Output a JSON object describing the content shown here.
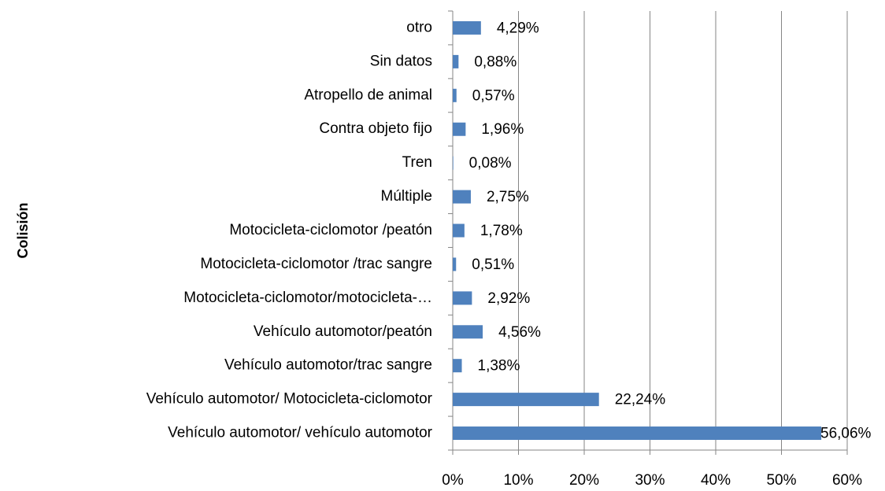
{
  "chart_data": {
    "type": "bar",
    "orientation": "horizontal",
    "y_axis_label": "Colisión",
    "categories": [
      "otro",
      "Sin datos",
      "Atropello de animal",
      "Contra objeto fijo",
      "Tren",
      "Múltiple",
      "Motocicleta-ciclomotor /peatón",
      "Motocicleta-ciclomotor /trac sangre",
      "Motocicleta-ciclomotor/motocicleta-…",
      "Vehículo automotor/peatón",
      "Vehículo automotor/trac sangre",
      "Vehículo automotor/ Motocicleta-ciclomotor",
      "Vehículo automotor/ vehículo automotor"
    ],
    "values": [
      4.29,
      0.88,
      0.57,
      1.96,
      0.08,
      2.75,
      1.78,
      0.51,
      2.92,
      4.56,
      1.38,
      22.24,
      56.06
    ],
    "value_labels": [
      "4,29%",
      "0,88%",
      "0,57%",
      "1,96%",
      "0,08%",
      "2,75%",
      "1,78%",
      "0,51%",
      "2,92%",
      "4,56%",
      "1,38%",
      "22,24%",
      "56,06%"
    ],
    "color": "#4f81bd",
    "xlim": [
      0,
      60
    ],
    "xticks": [
      {
        "value": 0,
        "label": "0%"
      },
      {
        "value": 10,
        "label": "10%"
      },
      {
        "value": 20,
        "label": "20%"
      },
      {
        "value": 30,
        "label": "30%"
      },
      {
        "value": 40,
        "label": "40%"
      },
      {
        "value": 50,
        "label": "50%"
      },
      {
        "value": 60,
        "label": "60%"
      }
    ],
    "grid": true
  }
}
